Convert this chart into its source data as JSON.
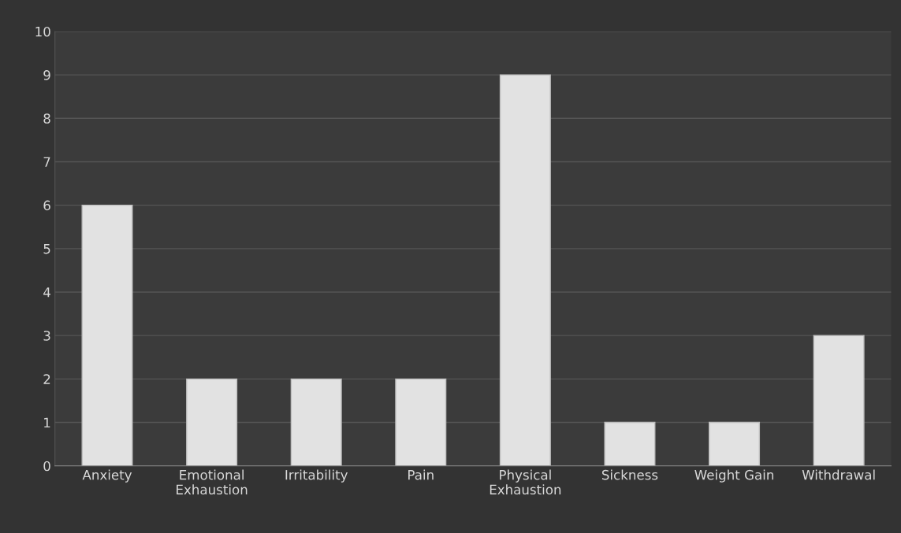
{
  "chart_data": {
    "type": "bar",
    "categories": [
      "Anxiety",
      "Emotional Exhaustion",
      "Irritability",
      "Pain",
      "Physical Exhaustion",
      "Sickness",
      "Weight Gain",
      "Withdrawal"
    ],
    "values": [
      6,
      2,
      2,
      2,
      9,
      1,
      1,
      3
    ],
    "color": "#e2e2e2",
    "ylim": [
      0,
      10
    ],
    "yticks": [
      0,
      1,
      2,
      3,
      4,
      5,
      6,
      7,
      8,
      9,
      10
    ],
    "grid": "y",
    "legend": false
  }
}
